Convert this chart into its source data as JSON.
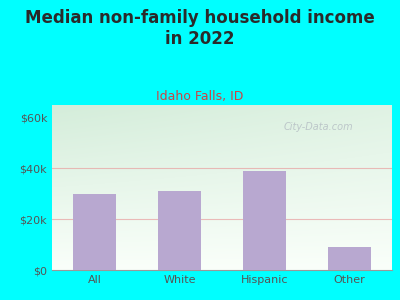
{
  "title": "Median non-family household income\nin 2022",
  "subtitle": "Idaho Falls, ID",
  "categories": [
    "All",
    "White",
    "Hispanic",
    "Other"
  ],
  "values": [
    30000,
    31000,
    39000,
    9000
  ],
  "bar_color": "#b8a8d0",
  "background_color": "#00FFFF",
  "plot_bg_top_left": "#d4edda",
  "plot_bg_bottom_right": "#f8fff8",
  "title_color": "#2a2a2a",
  "subtitle_color": "#cc4444",
  "tick_color": "#555555",
  "ylabel_ticks": [
    0,
    20000,
    40000,
    60000
  ],
  "ylabel_labels": [
    "$0",
    "$20k",
    "$40k",
    "$60k"
  ],
  "ylim": [
    0,
    65000
  ],
  "watermark": "City-Data.com",
  "grid_color": "#e8a0a0",
  "grid_alpha": 0.7,
  "title_fontsize": 12,
  "subtitle_fontsize": 9,
  "tick_fontsize": 8
}
